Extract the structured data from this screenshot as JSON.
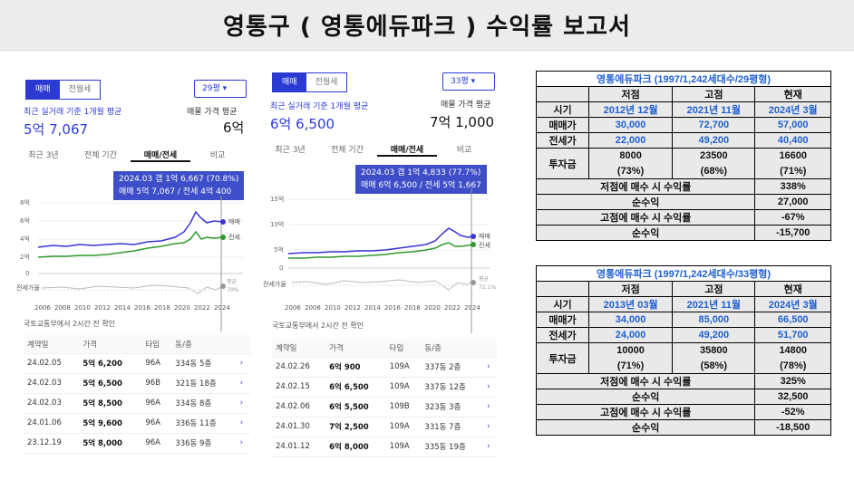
{
  "report_title": "영통구 ( 영통에듀파크 ) 수익률 보고서",
  "left": {
    "tab_sale": "매매",
    "tab_rent": "전월세",
    "size": "29평",
    "avg_caption": "최근 실거래 기준 1개월 평균",
    "avg_value": "5억 7,067",
    "ask_caption": "매물 가격 평균",
    "ask_value": "6억",
    "period_tabs": [
      "최근 3년",
      "전체 기간",
      "매매/전세",
      "비교"
    ],
    "tooltip_line1": "2024.03 갭 1억 6,667 (70.8%)",
    "tooltip_line2": "매매 5억 7,067 / 전세 4억 400",
    "y_ticks": [
      "8억",
      "6억",
      "4억",
      "2억",
      "0"
    ],
    "x_ticks": [
      "2006",
      "2008",
      "2010",
      "2012",
      "2014",
      "2016",
      "2018",
      "2020",
      "2022",
      "2024"
    ],
    "legend_sale": "매매",
    "legend_rent": "전세",
    "ratio_label": "전세가율",
    "ratio_tag": "평균",
    "ratio_pct": "70%",
    "source": "국토교통부에서 2시간 전 확인",
    "headers": [
      "계약일",
      "가격",
      "타입",
      "동/층"
    ],
    "rows": [
      {
        "date": "24.02.05",
        "price": "5억 6,200",
        "type": "96A",
        "unit": "334동 5층"
      },
      {
        "date": "24.02.03",
        "price": "5억 6,500",
        "type": "96B",
        "unit": "321동 18층"
      },
      {
        "date": "24.02.03",
        "price": "5억 8,500",
        "type": "96A",
        "unit": "334동 8층"
      },
      {
        "date": "24.01.06",
        "price": "5억 9,600",
        "type": "96A",
        "unit": "336동 11층"
      },
      {
        "date": "23.12.19",
        "price": "5억 8,000",
        "type": "96A",
        "unit": "336동 9층"
      }
    ]
  },
  "right": {
    "tab_sale": "매매",
    "tab_rent": "전월세",
    "size": "33평",
    "avg_caption": "최근 실거래 기준 1개월 평균",
    "avg_value": "6억 6,500",
    "ask_caption": "매물 가격 평균",
    "ask_value": "7억 1,000",
    "period_tabs": [
      "최근 3년",
      "전체 기간",
      "매매/전세",
      "비교"
    ],
    "tooltip_line1": "2024.03 갭 1억 4,833 (77.7%)",
    "tooltip_line2": "매매 6억 6,500 / 전세 5억 1,667",
    "y_ticks": [
      "15억",
      "10억",
      "5억",
      "0"
    ],
    "x_ticks": [
      "2006",
      "2008",
      "2010",
      "2012",
      "2014",
      "2016",
      "2018",
      "2020",
      "2022",
      "2024"
    ],
    "legend_sale": "매매",
    "legend_rent": "전세",
    "ratio_label": "전세가율",
    "ratio_tag": "평균",
    "ratio_pct": "72.1%",
    "source": "국토교통부에서 2시간 전 확인",
    "headers": [
      "계약일",
      "가격",
      "타입",
      "동/층"
    ],
    "rows": [
      {
        "date": "24.02.26",
        "price": "6억 900",
        "type": "109A",
        "unit": "337동 2층"
      },
      {
        "date": "24.02.15",
        "price": "6억 6,500",
        "type": "109A",
        "unit": "337동 12층"
      },
      {
        "date": "24.02.06",
        "price": "6억 5,500",
        "type": "109B",
        "unit": "323동 3층"
      },
      {
        "date": "24.01.30",
        "price": "7억 2,500",
        "type": "109A",
        "unit": "331동 7층"
      },
      {
        "date": "24.01.12",
        "price": "6억 8,000",
        "type": "109A",
        "unit": "335동 19층"
      }
    ]
  },
  "table1": {
    "title": "영통에듀파크 (1997/1,242세대수/29평형)",
    "cols": [
      "저점",
      "고점",
      "현재"
    ],
    "period_label": "시기",
    "periods": [
      "2012년 12월",
      "2021년 11월",
      "2024년 3월"
    ],
    "sale_label": "매매가",
    "sale": [
      "30,000",
      "72,700",
      "57,000"
    ],
    "rent_label": "전세가",
    "rent": [
      "22,000",
      "49,200",
      "40,400"
    ],
    "inv_label": "투자금",
    "inv": [
      "8000",
      "23500",
      "16600"
    ],
    "inv_pct": [
      "(73%)",
      "(68%)",
      "(71%)"
    ],
    "low_buy_label": "저점에 매수 시 수익률",
    "low_buy_val": "338%",
    "net1_label": "순수익",
    "net1_val": "27,000",
    "high_buy_label": "고점에 매수 시 수익률",
    "high_buy_val": "-67%",
    "net2_label": "순수익",
    "net2_val": "-15,700"
  },
  "table2": {
    "title": "영통에듀파크 (1997/1,242세대수/33평형)",
    "cols": [
      "저점",
      "고점",
      "현재"
    ],
    "period_label": "시기",
    "periods": [
      "2013년 03월",
      "2021년 11월",
      "2024년 3월"
    ],
    "sale_label": "매매가",
    "sale": [
      "34,000",
      "85,000",
      "66,500"
    ],
    "rent_label": "전세가",
    "rent": [
      "24,000",
      "49,200",
      "51,700"
    ],
    "inv_label": "투자금",
    "inv": [
      "10000",
      "35800",
      "14800"
    ],
    "inv_pct": [
      "(71%)",
      "(58%)",
      "(78%)"
    ],
    "low_buy_label": "저점에 매수 시 수익률",
    "low_buy_val": "325%",
    "net1_label": "순수익",
    "net1_val": "32,500",
    "high_buy_label": "고점에 매수 시 수익률",
    "high_buy_val": "-52%",
    "net2_label": "순수익",
    "net2_val": "-18,500"
  }
}
